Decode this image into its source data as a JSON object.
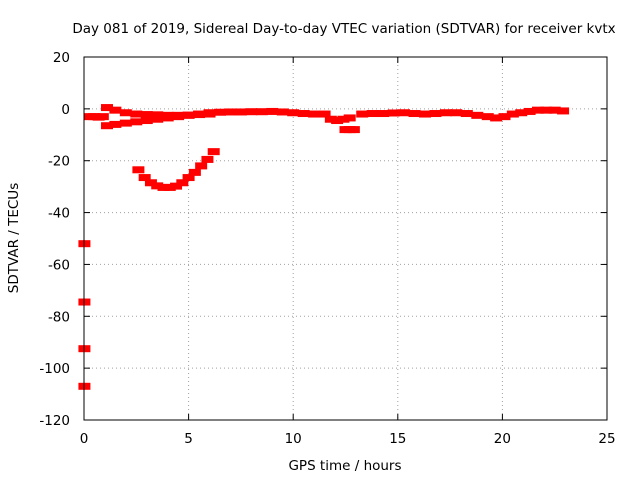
{
  "chart_data": {
    "type": "scatter",
    "title": "Day 081 of 2019, Sidereal Day-to-day VTEC variation (SDTVAR) for receiver kvtx",
    "xlabel": "GPS time / hours",
    "ylabel": "SDTVAR / TECUs",
    "xlim": [
      0,
      25
    ],
    "ylim": [
      -120,
      20
    ],
    "xticks": [
      0,
      5,
      10,
      15,
      20,
      25
    ],
    "yticks": [
      -120,
      -100,
      -80,
      -60,
      -40,
      -20,
      0,
      20
    ],
    "grid": true,
    "legend": "none",
    "color": "#ff0000",
    "series": [
      {
        "values": [
          [
            0.3,
            -3
          ],
          [
            0.5,
            -3
          ],
          [
            0.7,
            -3.2
          ],
          [
            0.9,
            -3
          ],
          [
            1.1,
            0.5
          ],
          [
            1.5,
            -0.5
          ],
          [
            2.0,
            -1.5
          ],
          [
            2.5,
            -2
          ],
          [
            3.0,
            -2.2
          ],
          [
            3.5,
            -2.3
          ],
          [
            4.0,
            -2.5
          ],
          [
            4.5,
            -2.5
          ],
          [
            5.0,
            -2.4
          ],
          [
            5.5,
            -2.2
          ],
          [
            6.0,
            -2
          ],
          [
            1.1,
            -6.5
          ],
          [
            1.5,
            -6
          ],
          [
            2.0,
            -5.5
          ],
          [
            2.5,
            -5
          ],
          [
            3.0,
            -4.5
          ],
          [
            3.5,
            -4
          ],
          [
            4.0,
            -3.5
          ],
          [
            4.5,
            -3
          ],
          [
            5.0,
            -2.5
          ],
          [
            5.5,
            -2
          ],
          [
            6.0,
            -1.5
          ],
          [
            6.5,
            -1.3
          ],
          [
            7.0,
            -1.2
          ],
          [
            7.5,
            -1.2
          ],
          [
            8.0,
            -1.1
          ],
          [
            8.5,
            -1.1
          ],
          [
            9.0,
            -1
          ],
          [
            9.5,
            -1.2
          ],
          [
            10.0,
            -1.5
          ],
          [
            10.5,
            -1.8
          ],
          [
            11.0,
            -2
          ],
          [
            11.5,
            -2
          ],
          [
            11.8,
            -4
          ],
          [
            12.1,
            -4.5
          ],
          [
            12.4,
            -4
          ],
          [
            12.7,
            -3.5
          ],
          [
            12.5,
            -8
          ],
          [
            12.7,
            -8
          ],
          [
            12.9,
            -8
          ],
          [
            13.3,
            -2
          ],
          [
            13.8,
            -1.8
          ],
          [
            14.3,
            -1.8
          ],
          [
            14.8,
            -1.6
          ],
          [
            15.3,
            -1.5
          ],
          [
            15.8,
            -1.8
          ],
          [
            16.3,
            -2
          ],
          [
            16.8,
            -1.8
          ],
          [
            17.3,
            -1.5
          ],
          [
            17.8,
            -1.5
          ],
          [
            18.3,
            -1.8
          ],
          [
            18.8,
            -2.5
          ],
          [
            19.3,
            -3
          ],
          [
            19.7,
            -3.5
          ],
          [
            20.1,
            -3
          ],
          [
            20.5,
            -2
          ],
          [
            20.9,
            -1.5
          ],
          [
            21.3,
            -1
          ],
          [
            21.7,
            -0.5
          ],
          [
            22.1,
            -0.5
          ],
          [
            22.5,
            -0.5
          ],
          [
            22.9,
            -0.8
          ]
        ]
      },
      {
        "values": [
          [
            2.6,
            -23.5
          ],
          [
            2.9,
            -26.5
          ],
          [
            3.2,
            -28.5
          ],
          [
            3.5,
            -29.7
          ],
          [
            3.8,
            -30.3
          ],
          [
            4.1,
            -30.3
          ],
          [
            4.4,
            -29.8
          ],
          [
            4.7,
            -28.5
          ],
          [
            5.0,
            -26.5
          ],
          [
            5.3,
            -24.5
          ],
          [
            5.6,
            -22
          ],
          [
            5.9,
            -19.5
          ],
          [
            6.2,
            -16.5
          ]
        ]
      },
      {
        "values": [
          [
            0.02,
            -52
          ],
          [
            0.02,
            -74.5
          ],
          [
            0.02,
            -92.5
          ],
          [
            0.02,
            -107
          ]
        ]
      }
    ]
  }
}
